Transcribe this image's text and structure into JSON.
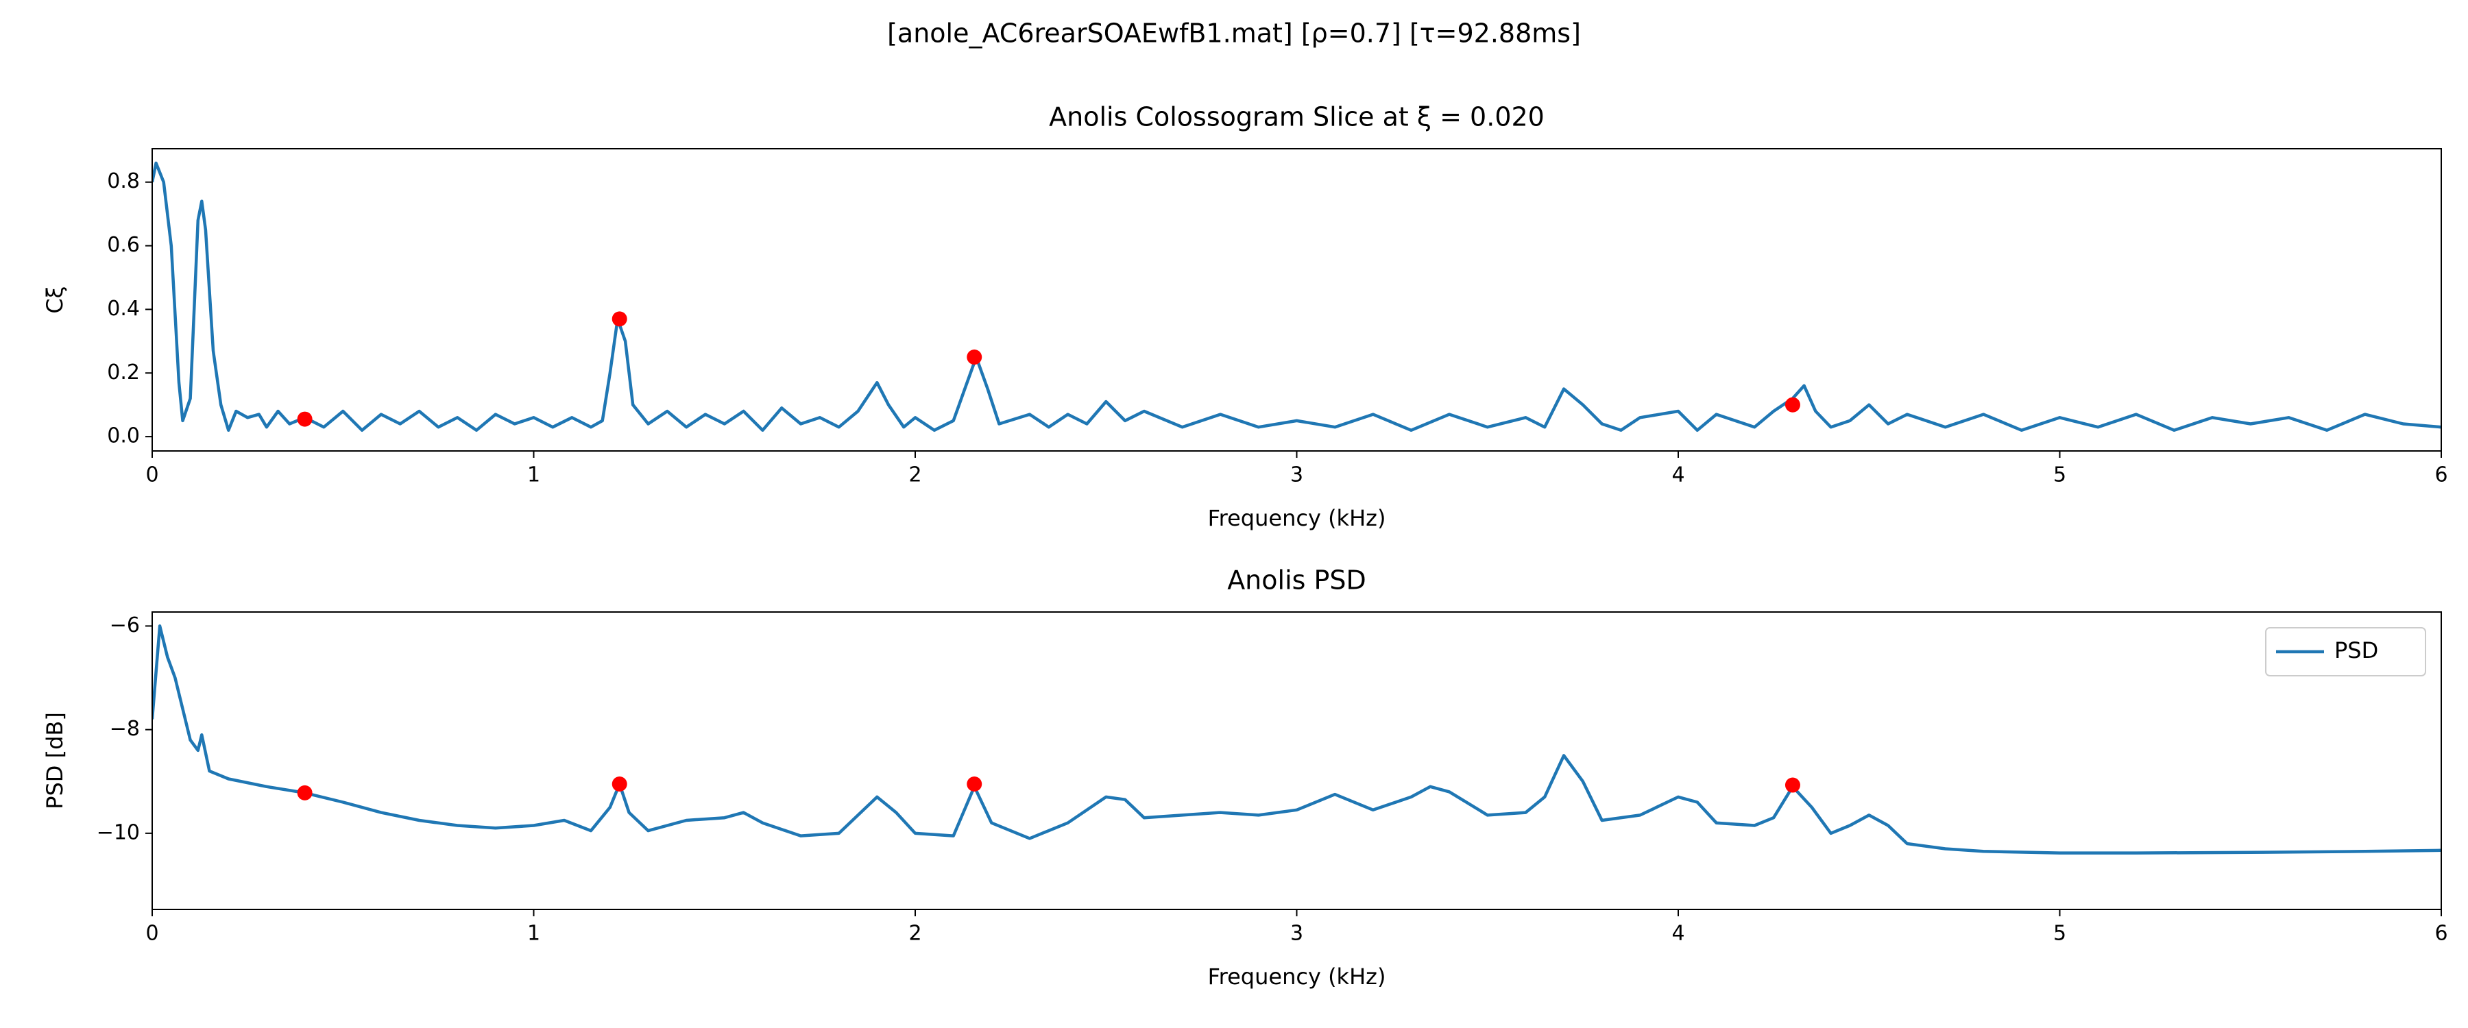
{
  "suptitle": "[anole_AC6rearSOAEwfB1.mat]   [ρ=0.7]   [τ=92.88ms]",
  "chart_data": [
    {
      "type": "line",
      "title": "Anolis Colossogram Slice at ξ = 0.020",
      "xlabel": "Frequency (kHz)",
      "ylabel": "Cξ",
      "xlim": [
        0,
        6
      ],
      "xticks": [
        0,
        1,
        2,
        3,
        4,
        5,
        6
      ],
      "ylim": [
        -0.045,
        0.905
      ],
      "yticks": [
        {
          "value": 0,
          "label": "0.0"
        },
        0.2,
        0.4,
        0.6,
        0.8
      ],
      "x": [
        0,
        0.01,
        0.03,
        0.05,
        0.07,
        0.08,
        0.1,
        0.12,
        0.13,
        0.14,
        0.16,
        0.18,
        0.2,
        0.22,
        0.25,
        0.28,
        0.3,
        0.33,
        0.36,
        0.4,
        0.45,
        0.5,
        0.55,
        0.6,
        0.65,
        0.7,
        0.75,
        0.8,
        0.85,
        0.9,
        0.95,
        1.0,
        1.05,
        1.1,
        1.15,
        1.18,
        1.2,
        1.22,
        1.24,
        1.26,
        1.3,
        1.35,
        1.4,
        1.45,
        1.5,
        1.55,
        1.6,
        1.65,
        1.7,
        1.75,
        1.8,
        1.85,
        1.9,
        1.93,
        1.97,
        2.0,
        2.05,
        2.1,
        2.13,
        2.16,
        2.19,
        2.22,
        2.3,
        2.35,
        2.4,
        2.45,
        2.5,
        2.55,
        2.6,
        2.7,
        2.8,
        2.9,
        3.0,
        3.1,
        3.2,
        3.3,
        3.4,
        3.5,
        3.6,
        3.65,
        3.7,
        3.75,
        3.8,
        3.85,
        3.9,
        4.0,
        4.05,
        4.1,
        4.2,
        4.25,
        4.3,
        4.33,
        4.36,
        4.4,
        4.45,
        4.5,
        4.55,
        4.6,
        4.7,
        4.8,
        4.9,
        5.0,
        5.1,
        5.2,
        5.3,
        5.4,
        5.5,
        5.6,
        5.7,
        5.8,
        5.9,
        6.0
      ],
      "series": [
        {
          "color": "#1f77b4",
          "values": [
            0.8,
            0.86,
            0.8,
            0.6,
            0.17,
            0.05,
            0.12,
            0.68,
            0.74,
            0.65,
            0.27,
            0.1,
            0.02,
            0.08,
            0.06,
            0.07,
            0.03,
            0.08,
            0.04,
            0.06,
            0.03,
            0.08,
            0.02,
            0.07,
            0.04,
            0.08,
            0.03,
            0.06,
            0.02,
            0.07,
            0.04,
            0.06,
            0.03,
            0.06,
            0.03,
            0.05,
            0.2,
            0.37,
            0.3,
            0.1,
            0.04,
            0.08,
            0.03,
            0.07,
            0.04,
            0.08,
            0.02,
            0.09,
            0.04,
            0.06,
            0.03,
            0.08,
            0.17,
            0.1,
            0.03,
            0.06,
            0.02,
            0.05,
            0.15,
            0.25,
            0.15,
            0.04,
            0.07,
            0.03,
            0.07,
            0.04,
            0.11,
            0.05,
            0.08,
            0.03,
            0.07,
            0.03,
            0.05,
            0.03,
            0.07,
            0.02,
            0.07,
            0.03,
            0.06,
            0.03,
            0.15,
            0.1,
            0.04,
            0.02,
            0.06,
            0.08,
            0.02,
            0.07,
            0.03,
            0.08,
            0.12,
            0.16,
            0.08,
            0.03,
            0.05,
            0.1,
            0.04,
            0.07,
            0.03,
            0.07,
            0.02,
            0.06,
            0.03,
            0.07,
            0.02,
            0.06,
            0.04,
            0.06,
            0.02,
            0.07,
            0.04,
            0.03
          ]
        }
      ],
      "points": {
        "color": "#ff0000",
        "x": [
          0.4,
          1.225,
          2.155,
          4.3
        ],
        "values": [
          0.055,
          0.37,
          0.25,
          0.1
        ]
      }
    },
    {
      "type": "line",
      "title": "Anolis PSD",
      "xlabel": "Frequency (kHz)",
      "ylabel": "PSD [dB]",
      "xlim": [
        0,
        6
      ],
      "xticks": [
        0,
        1,
        2,
        3,
        4,
        5,
        6
      ],
      "ylim": [
        -11.47,
        -5.73
      ],
      "yticks": [
        {
          "value": -10,
          "label": "−10"
        },
        {
          "value": -8,
          "label": "−8"
        },
        {
          "value": -6,
          "label": "−6"
        }
      ],
      "legend": "upper right",
      "x": [
        0,
        0.02,
        0.04,
        0.06,
        0.08,
        0.1,
        0.12,
        0.13,
        0.15,
        0.2,
        0.3,
        0.4,
        0.5,
        0.6,
        0.7,
        0.8,
        0.9,
        1.0,
        1.08,
        1.15,
        1.2,
        1.225,
        1.25,
        1.3,
        1.4,
        1.5,
        1.55,
        1.6,
        1.7,
        1.8,
        1.9,
        1.95,
        2.0,
        2.1,
        2.155,
        2.2,
        2.3,
        2.4,
        2.5,
        2.55,
        2.6,
        2.7,
        2.8,
        2.9,
        3.0,
        3.1,
        3.2,
        3.3,
        3.35,
        3.4,
        3.5,
        3.6,
        3.65,
        3.7,
        3.75,
        3.8,
        3.9,
        4.0,
        4.05,
        4.1,
        4.2,
        4.25,
        4.3,
        4.35,
        4.4,
        4.45,
        4.5,
        4.55,
        4.6,
        4.7,
        4.8,
        5.0,
        5.2,
        5.5,
        5.8,
        6.0
      ],
      "series": [
        {
          "name": "PSD",
          "color": "#1f77b4",
          "values": [
            -7.8,
            -6.0,
            -6.6,
            -7.0,
            -7.6,
            -8.2,
            -8.4,
            -8.1,
            -8.8,
            -8.95,
            -9.1,
            -9.22,
            -9.4,
            -9.6,
            -9.75,
            -9.85,
            -9.9,
            -9.85,
            -9.75,
            -9.95,
            -9.5,
            -9.05,
            -9.6,
            -9.95,
            -9.75,
            -9.7,
            -9.6,
            -9.8,
            -10.05,
            -10.0,
            -9.3,
            -9.6,
            -10.0,
            -10.05,
            -9.1,
            -9.8,
            -10.1,
            -9.8,
            -9.3,
            -9.35,
            -9.7,
            -9.65,
            -9.6,
            -9.65,
            -9.55,
            -9.25,
            -9.55,
            -9.3,
            -9.1,
            -9.2,
            -9.65,
            -9.6,
            -9.3,
            -8.5,
            -9.0,
            -9.75,
            -9.65,
            -9.3,
            -9.4,
            -9.8,
            -9.85,
            -9.7,
            -9.1,
            -9.5,
            -10.0,
            -9.85,
            -9.65,
            -9.85,
            -10.2,
            -10.3,
            -10.35,
            -10.38,
            -10.38,
            -10.37,
            -10.35,
            -10.33
          ]
        }
      ],
      "points": {
        "color": "#ff0000",
        "x": [
          0.4,
          1.225,
          2.155,
          4.3
        ],
        "values": [
          -9.22,
          -9.05,
          -9.05,
          -9.07
        ]
      }
    }
  ]
}
